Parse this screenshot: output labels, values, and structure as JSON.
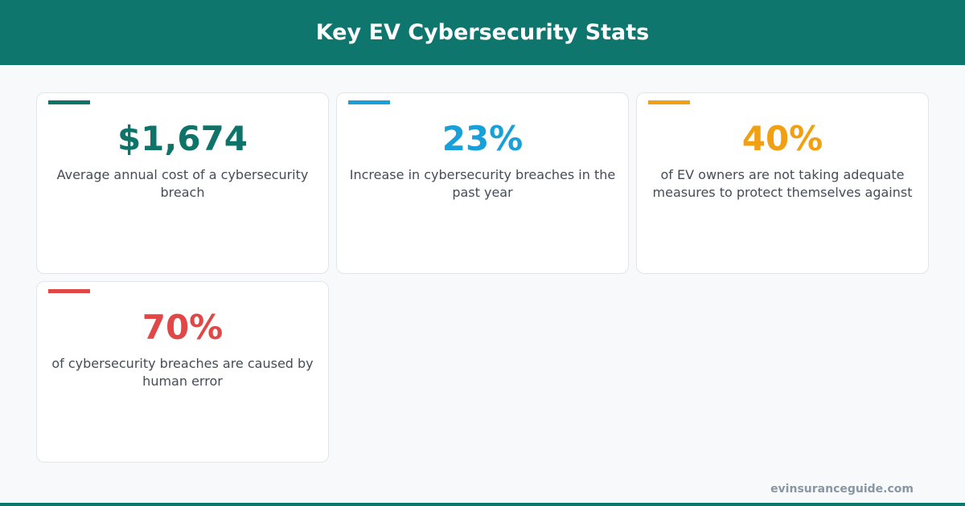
{
  "header": {
    "title": "Key EV Cybersecurity Stats"
  },
  "cards": [
    {
      "stat": "$1,674",
      "text": "Average annual cost of a cybersecurity breach",
      "color": "#0e7369"
    },
    {
      "stat": "23%",
      "text": "Increase in cybersecurity breaches in the past year",
      "color": "#1aa0d8"
    },
    {
      "stat": "40%",
      "text": "of EV owners are not taking adequate measures to protect themselves against",
      "color": "#f0a012"
    },
    {
      "stat": "70%",
      "text": "of cybersecurity breaches are caused by human error",
      "color": "#e04848"
    }
  ],
  "footer": {
    "source": "evinsuranceguide.com"
  }
}
